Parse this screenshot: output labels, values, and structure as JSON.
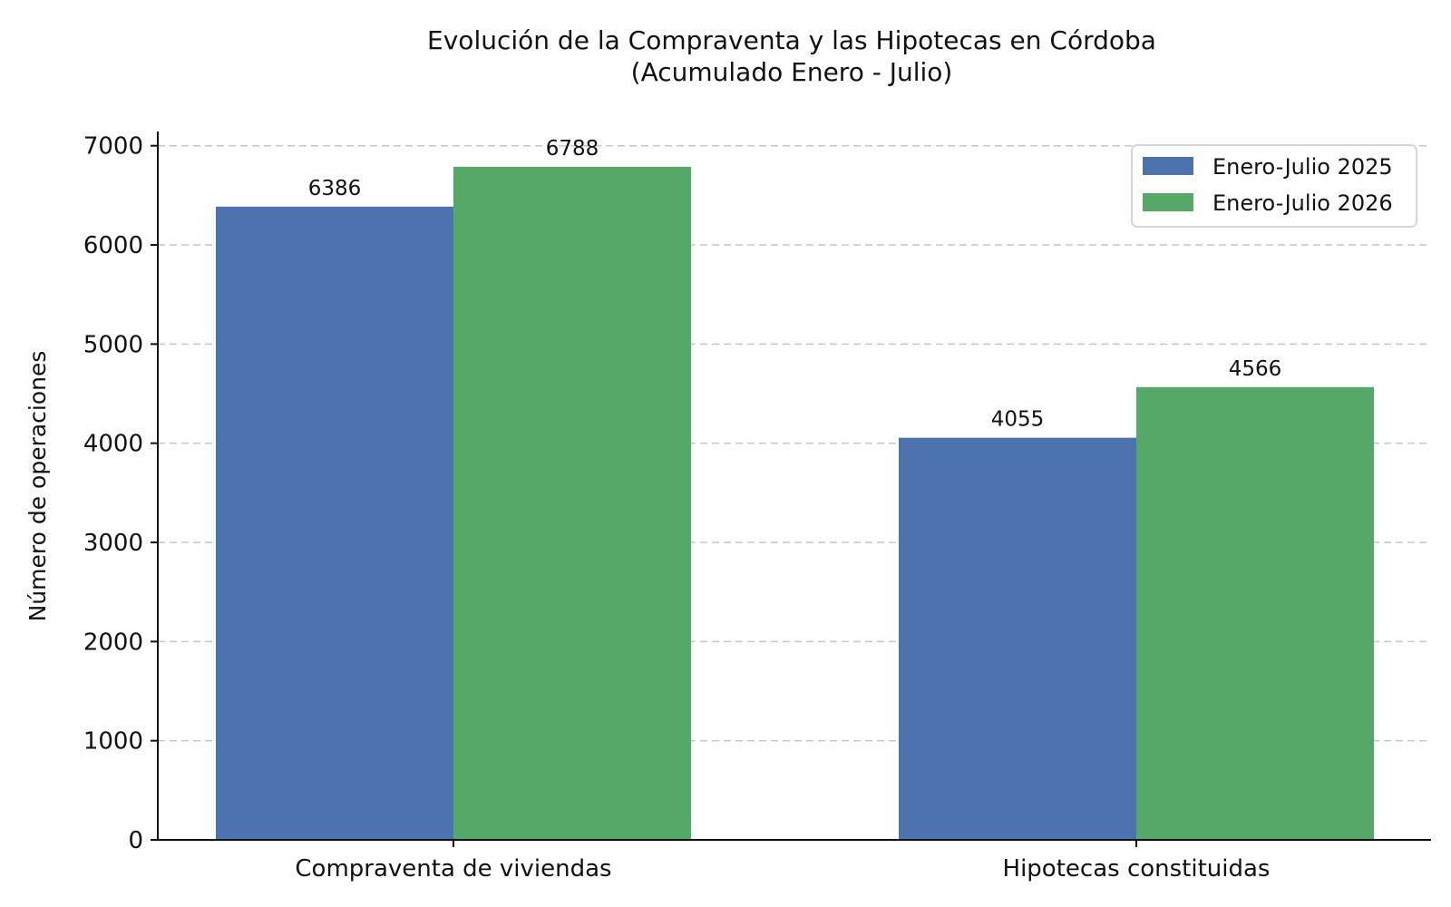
{
  "chart_data": {
    "type": "bar",
    "title": "Evolución de la Compraventa y las Hipotecas en Córdoba",
    "subtitle": "(Acumulado Enero - Julio)",
    "ylabel": "Número de operaciones",
    "xlabel": "",
    "categories": [
      "Compraventa de viviendas",
      "Hipotecas constituidas"
    ],
    "series": [
      {
        "name": "Enero-Julio 2025",
        "color": "#4C72B0",
        "values": [
          6386,
          4055
        ]
      },
      {
        "name": "Enero-Julio 2026",
        "color": "#55A868",
        "values": [
          6788,
          4566
        ]
      }
    ],
    "ylim": [
      0,
      7100
    ],
    "yticks": [
      0,
      1000,
      2000,
      3000,
      4000,
      5000,
      6000,
      7000
    ],
    "grid": "horizontal dashed",
    "legend_position": "top-right"
  }
}
